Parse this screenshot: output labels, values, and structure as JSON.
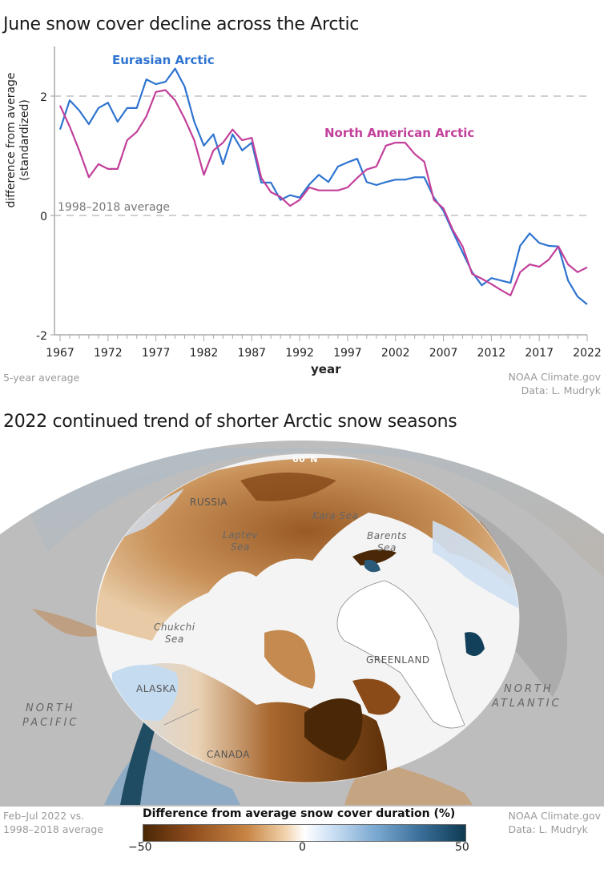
{
  "chart_title": "June snow cover decline across the Arctic",
  "chart_notes": {
    "left": "5-year average",
    "source_line1": "NOAA Climate.gov",
    "source_line2": "Data: L. Mudryk"
  },
  "map_title": "2022 continued trend of shorter Arctic snow seasons",
  "map_labels": {
    "lat": "60°N",
    "russia": "RUSSIA",
    "kara": "Kara Sea",
    "laptev_1": "Laptev",
    "laptev_2": "Sea",
    "barents_1": "Barents",
    "barents_2": "Sea",
    "chukchi_1": "Chukchi",
    "chukchi_2": "Sea",
    "greenland": "GREENLAND",
    "alaska": "ALASKA",
    "canada": "CANADA",
    "north_pacific_1": "NORTH",
    "north_pacific_2": "PACIFIC",
    "north_atlantic_1": "NORTH",
    "north_atlantic_2": "ATLANTIC"
  },
  "map_notes": {
    "left_line1": "Feb–Jul 2022 vs.",
    "left_line2": "1998–2018 average",
    "source_line1": "NOAA Climate.gov",
    "source_line2": "Data: L. Mudryk"
  },
  "legend": {
    "title": "Difference from average snow cover duration (%)",
    "min_label": "−50",
    "mid_label": "0",
    "max_label": "50",
    "colors": [
      "#4a2706",
      "#c78443",
      "#ffffff",
      "#7ba9d1",
      "#0f3a52"
    ]
  },
  "chart_data": {
    "type": "line",
    "title": "June snow cover decline across the Arctic",
    "xlabel": "year",
    "ylabel": "difference from average",
    "ylabel_sub": "(standardized)",
    "ylim": [
      -2,
      2.8
    ],
    "xlim": [
      1967,
      2022
    ],
    "yticks": [
      -2,
      0,
      2
    ],
    "xticks": [
      1967,
      1972,
      1977,
      1982,
      1987,
      1992,
      1997,
      2002,
      2007,
      2012,
      2017,
      2022
    ],
    "grid": "dashed horizontal at y=2 and y=0",
    "reference_line": {
      "y": 0,
      "label": "1998–2018 average"
    },
    "annotation": "5-year average",
    "x": [
      1967,
      1968,
      1969,
      1970,
      1971,
      1972,
      1973,
      1974,
      1975,
      1976,
      1977,
      1978,
      1979,
      1980,
      1981,
      1982,
      1983,
      1984,
      1985,
      1986,
      1987,
      1988,
      1989,
      1990,
      1991,
      1992,
      1993,
      1994,
      1995,
      1996,
      1997,
      1998,
      1999,
      2000,
      2001,
      2002,
      2003,
      2004,
      2005,
      2006,
      2007,
      2008,
      2009,
      2010,
      2011,
      2012,
      2013,
      2014,
      2015,
      2016,
      2017,
      2018,
      2019,
      2020,
      2021,
      2022
    ],
    "series": [
      {
        "name": "Eurasian Arctic",
        "color": "#2f74d0",
        "values": [
          1.44,
          1.93,
          1.76,
          1.53,
          1.8,
          1.89,
          1.57,
          1.8,
          1.8,
          2.28,
          2.2,
          2.24,
          2.46,
          2.16,
          1.57,
          1.17,
          1.36,
          0.86,
          1.36,
          1.09,
          1.22,
          0.55,
          0.55,
          0.26,
          0.34,
          0.3,
          0.52,
          0.68,
          0.56,
          0.82,
          0.89,
          0.95,
          0.56,
          0.51,
          0.56,
          0.6,
          0.6,
          0.64,
          0.64,
          0.3,
          0.08,
          -0.28,
          -0.62,
          -0.95,
          -1.17,
          -1.05,
          -1.09,
          -1.13,
          -0.51,
          -0.3,
          -0.46,
          -0.51,
          -0.52,
          -1.09,
          -1.36,
          -1.49
        ]
      },
      {
        "name": "North American Arctic",
        "color": "#c2409a",
        "values": [
          1.84,
          1.49,
          1.09,
          0.64,
          0.86,
          0.78,
          0.78,
          1.26,
          1.4,
          1.66,
          2.07,
          2.1,
          1.93,
          1.62,
          1.26,
          0.68,
          1.09,
          1.22,
          1.44,
          1.26,
          1.3,
          0.63,
          0.39,
          0.31,
          0.16,
          0.26,
          0.47,
          0.42,
          0.42,
          0.42,
          0.47,
          0.63,
          0.77,
          0.82,
          1.17,
          1.22,
          1.22,
          1.03,
          0.9,
          0.26,
          0.12,
          -0.25,
          -0.52,
          -0.98,
          -1.06,
          -1.15,
          -1.25,
          -1.34,
          -0.95,
          -0.82,
          -0.86,
          -0.74,
          -0.52,
          -0.82,
          -0.95,
          -0.87
        ]
      }
    ],
    "series_label_positions": {
      "Eurasian Arctic": [
        140,
        80
      ],
      "North American Arctic": [
        405,
        171
      ]
    }
  }
}
